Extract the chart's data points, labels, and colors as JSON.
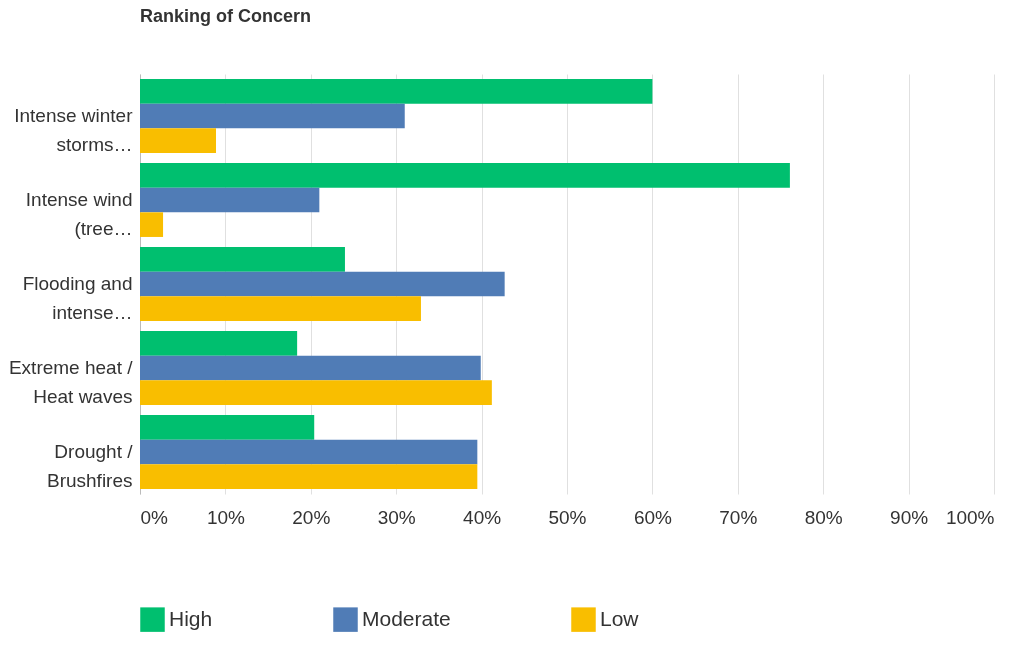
{
  "chart_data": {
    "type": "bar",
    "orientation": "horizontal",
    "title": "Ranking of Concern",
    "categories": [
      "Intense winter storms…",
      "Intense wind (tree…",
      "Flooding and intense…",
      "Extreme heat / Heat waves",
      "Drought / Brushfires"
    ],
    "series": [
      {
        "name": "High",
        "color": "#00bf6f",
        "values": [
          60,
          76.1,
          24,
          18.4,
          20.4
        ]
      },
      {
        "name": "Moderate",
        "color": "#507cb6",
        "values": [
          31,
          21,
          42.7,
          39.9,
          39.5
        ]
      },
      {
        "name": "Low",
        "color": "#f9be00",
        "values": [
          8.9,
          2.7,
          32.9,
          41.2,
          39.5
        ]
      }
    ],
    "xlim": [
      0,
      100
    ],
    "xticks": [
      {
        "value": 0,
        "label": "0%"
      },
      {
        "value": 10,
        "label": "10%"
      },
      {
        "value": 20,
        "label": "20%"
      },
      {
        "value": 30,
        "label": "30%"
      },
      {
        "value": 40,
        "label": "40%"
      },
      {
        "value": 50,
        "label": "50%"
      },
      {
        "value": 60,
        "label": "60%"
      },
      {
        "value": 70,
        "label": "70%"
      },
      {
        "value": 80,
        "label": "80%"
      },
      {
        "value": 90,
        "label": "90%"
      },
      {
        "value": 100,
        "label": "100%"
      }
    ],
    "grid": "x",
    "legend": "bottom"
  }
}
